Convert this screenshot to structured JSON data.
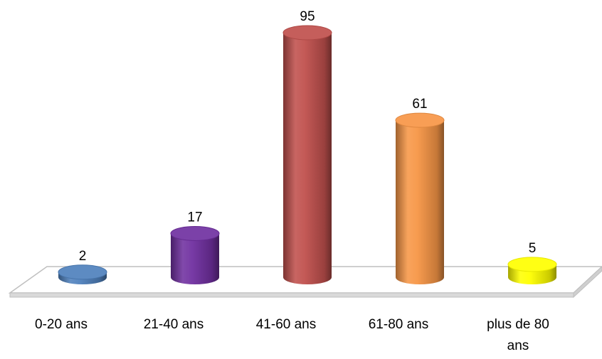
{
  "chart_data": {
    "type": "bar",
    "style": "3d-cylinder",
    "categories": [
      [
        "0-20 ans"
      ],
      [
        "21-40 ans"
      ],
      [
        "41-60 ans"
      ],
      [
        "61-80 ans"
      ],
      [
        "plus de 80",
        "ans"
      ]
    ],
    "values": [
      2,
      17,
      95,
      61,
      5
    ],
    "colors": [
      "#4f81bd",
      "#7030a0",
      "#c0504d",
      "#f79646",
      "#ffff00"
    ],
    "title": "",
    "xlabel": "",
    "ylabel": "",
    "ylim": [
      0,
      95
    ],
    "grid": false,
    "legend": "none",
    "data_labels": true,
    "floor": true
  }
}
